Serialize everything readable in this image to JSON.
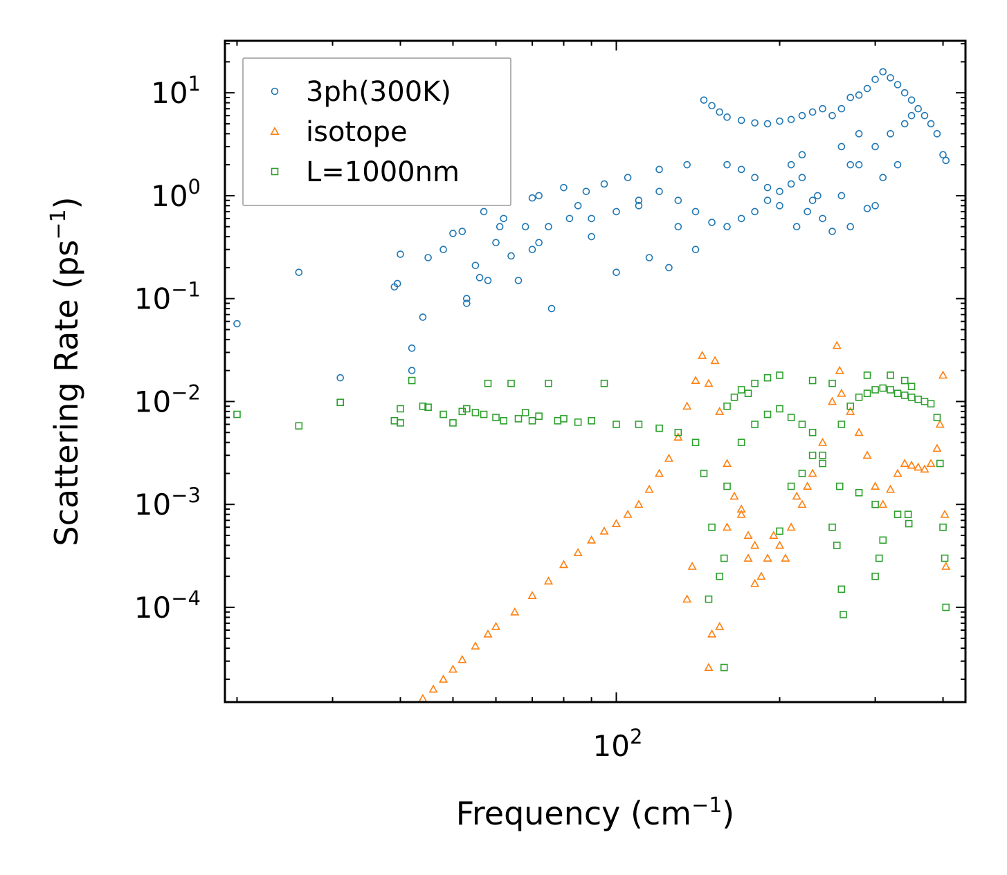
{
  "chart_data": {
    "type": "scatter",
    "title": "",
    "xlabel": "Frequency (cm",
    "xlabel_sup": "−1",
    "xlabel_tail": ")",
    "ylabel": "Scattering Rate (ps",
    "ylabel_sup": "−1",
    "ylabel_tail": ")",
    "xscale": "log",
    "yscale": "log",
    "xlim": [
      19,
      440
    ],
    "ylim": [
      1.2e-05,
      32
    ],
    "x_major_ticks": [
      {
        "value": 100,
        "base": "10",
        "exp": "2"
      }
    ],
    "y_major_ticks": [
      {
        "value": 0.0001,
        "base": "10",
        "exp": "−4"
      },
      {
        "value": 0.001,
        "base": "10",
        "exp": "−3"
      },
      {
        "value": 0.01,
        "base": "10",
        "exp": "−2"
      },
      {
        "value": 0.1,
        "base": "10",
        "exp": "−1"
      },
      {
        "value": 1,
        "base": "10",
        "exp": "0"
      },
      {
        "value": 10,
        "base": "10",
        "exp": "1"
      }
    ],
    "legend_position": "top-left",
    "series": [
      {
        "name": "3ph(300K)",
        "marker": "circle",
        "color": "#1f77b4",
        "points": [
          [
            20,
            0.057
          ],
          [
            26,
            0.18
          ],
          [
            31,
            0.017
          ],
          [
            39,
            0.13
          ],
          [
            40,
            0.27
          ],
          [
            39.5,
            0.14
          ],
          [
            42,
            0.033
          ],
          [
            42,
            0.02
          ],
          [
            44,
            0.066
          ],
          [
            45,
            0.25
          ],
          [
            48,
            0.3
          ],
          [
            50,
            0.43
          ],
          [
            52,
            0.45
          ],
          [
            53,
            0.1
          ],
          [
            53,
            0.09
          ],
          [
            55,
            0.21
          ],
          [
            56,
            0.16
          ],
          [
            57,
            0.7
          ],
          [
            58,
            0.15
          ],
          [
            60,
            0.35
          ],
          [
            61,
            0.5
          ],
          [
            62,
            0.6
          ],
          [
            64,
            0.26
          ],
          [
            66,
            0.15
          ],
          [
            68,
            0.5
          ],
          [
            70,
            0.95
          ],
          [
            70,
            0.3
          ],
          [
            72,
            1.0
          ],
          [
            72,
            0.35
          ],
          [
            75,
            0.5
          ],
          [
            76,
            0.08
          ],
          [
            80,
            1.2
          ],
          [
            82,
            0.6
          ],
          [
            85,
            0.8
          ],
          [
            88,
            1.1
          ],
          [
            90,
            0.4
          ],
          [
            95,
            1.3
          ],
          [
            100,
            0.18
          ],
          [
            105,
            1.5
          ],
          [
            110,
            0.8
          ],
          [
            115,
            0.25
          ],
          [
            120,
            1.8
          ],
          [
            125,
            0.2
          ],
          [
            130,
            0.5
          ],
          [
            135,
            2.0
          ],
          [
            140,
            0.3
          ],
          [
            145,
            8.5
          ],
          [
            150,
            7.5
          ],
          [
            155,
            6.5
          ],
          [
            160,
            5.8
          ],
          [
            170,
            5.4
          ],
          [
            180,
            5.1
          ],
          [
            190,
            5.0
          ],
          [
            200,
            5.3
          ],
          [
            210,
            5.5
          ],
          [
            220,
            6.0
          ],
          [
            230,
            6.5
          ],
          [
            240,
            7.0
          ],
          [
            250,
            6.0
          ],
          [
            260,
            7.0
          ],
          [
            270,
            9.0
          ],
          [
            280,
            9.5
          ],
          [
            290,
            11.0
          ],
          [
            300,
            13.5
          ],
          [
            310,
            16.0
          ],
          [
            320,
            14.0
          ],
          [
            330,
            12.0
          ],
          [
            340,
            10.0
          ],
          [
            350,
            8.5
          ],
          [
            360,
            7.0
          ],
          [
            370,
            6.0
          ],
          [
            380,
            5.0
          ],
          [
            390,
            4.0
          ],
          [
            400,
            2.5
          ],
          [
            405,
            2.2
          ],
          [
            300,
            0.8
          ],
          [
            290,
            0.75
          ],
          [
            270,
            0.5
          ],
          [
            250,
            0.45
          ],
          [
            240,
            0.6
          ],
          [
            230,
            0.9
          ],
          [
            220,
            1.5
          ],
          [
            210,
            1.3
          ],
          [
            200,
            1.1
          ],
          [
            190,
            0.9
          ],
          [
            180,
            0.7
          ],
          [
            170,
            0.6
          ],
          [
            160,
            0.5
          ],
          [
            150,
            0.55
          ],
          [
            140,
            0.7
          ],
          [
            130,
            0.9
          ],
          [
            120,
            1.1
          ],
          [
            110,
            0.9
          ],
          [
            100,
            0.7
          ],
          [
            90,
            0.6
          ],
          [
            260,
            1.0
          ],
          [
            280,
            2.0
          ],
          [
            300,
            3.0
          ],
          [
            320,
            4.0
          ],
          [
            340,
            5.0
          ],
          [
            310,
            1.5
          ],
          [
            330,
            2.0
          ],
          [
            260,
            3.0
          ],
          [
            270,
            2.0
          ],
          [
            280,
            4.0
          ],
          [
            350,
            6.0
          ],
          [
            215,
            0.5
          ],
          [
            225,
            0.7
          ],
          [
            235,
            1.0
          ],
          [
            160,
            2.0
          ],
          [
            170,
            1.8
          ],
          [
            180,
            1.5
          ],
          [
            190,
            1.2
          ],
          [
            200,
            0.8
          ],
          [
            210,
            2.0
          ],
          [
            220,
            2.5
          ]
        ]
      },
      {
        "name": "isotope",
        "marker": "triangle",
        "color": "#ff7f0e",
        "points": [
          [
            44,
            1.3e-05
          ],
          [
            46,
            1.6e-05
          ],
          [
            48,
            2e-05
          ],
          [
            50,
            2.5e-05
          ],
          [
            52,
            3.1e-05
          ],
          [
            55,
            4.2e-05
          ],
          [
            58,
            5.5e-05
          ],
          [
            60,
            6.5e-05
          ],
          [
            65,
            9e-05
          ],
          [
            70,
            0.00013
          ],
          [
            75,
            0.00018
          ],
          [
            80,
            0.00026
          ],
          [
            85,
            0.00034
          ],
          [
            90,
            0.00045
          ],
          [
            95,
            0.00055
          ],
          [
            100,
            0.00065
          ],
          [
            105,
            0.0008
          ],
          [
            110,
            0.001
          ],
          [
            115,
            0.0014
          ],
          [
            120,
            0.002
          ],
          [
            125,
            0.0028
          ],
          [
            130,
            0.0045
          ],
          [
            135,
            0.009
          ],
          [
            140,
            0.016
          ],
          [
            144,
            0.028
          ],
          [
            148,
            0.015
          ],
          [
            152,
            0.025
          ],
          [
            155,
            0.008
          ],
          [
            160,
            0.0025
          ],
          [
            165,
            0.0012
          ],
          [
            170,
            0.0008
          ],
          [
            175,
            0.0005
          ],
          [
            180,
            0.0004
          ],
          [
            190,
            0.0003
          ],
          [
            200,
            0.0004
          ],
          [
            210,
            0.0006
          ],
          [
            220,
            0.001
          ],
          [
            230,
            0.002
          ],
          [
            240,
            0.004
          ],
          [
            250,
            0.01
          ],
          [
            255,
            0.035
          ],
          [
            258,
            0.02
          ],
          [
            260,
            0.012
          ],
          [
            270,
            0.008
          ],
          [
            280,
            0.005
          ],
          [
            290,
            0.003
          ],
          [
            300,
            0.0015
          ],
          [
            310,
            0.001
          ],
          [
            320,
            0.0014
          ],
          [
            330,
            0.002
          ],
          [
            340,
            0.0025
          ],
          [
            350,
            0.0024
          ],
          [
            360,
            0.0023
          ],
          [
            370,
            0.0022
          ],
          [
            380,
            0.0025
          ],
          [
            390,
            0.0035
          ],
          [
            395,
            0.006
          ],
          [
            400,
            0.018
          ],
          [
            403,
            0.0008
          ],
          [
            405,
            0.00025
          ],
          [
            135,
            0.00012
          ],
          [
            138,
            0.00025
          ],
          [
            150,
            5.5e-05
          ],
          [
            155,
            6.5e-05
          ],
          [
            148,
            2.6e-05
          ],
          [
            160,
            0.0006
          ],
          [
            170,
            0.0009
          ],
          [
            175,
            0.0003
          ],
          [
            180,
            0.00017
          ],
          [
            185,
            0.0002
          ],
          [
            195,
            0.0005
          ],
          [
            205,
            0.0003
          ],
          [
            215,
            0.0012
          ],
          [
            225,
            0.0015
          ]
        ]
      },
      {
        "name": "L=1000nm",
        "marker": "square",
        "color": "#2ca02c",
        "points": [
          [
            20,
            0.0075
          ],
          [
            26,
            0.0058
          ],
          [
            31,
            0.0098
          ],
          [
            39,
            0.0065
          ],
          [
            40,
            0.0062
          ],
          [
            40,
            0.0085
          ],
          [
            42,
            0.016
          ],
          [
            44,
            0.009
          ],
          [
            45,
            0.0088
          ],
          [
            48,
            0.0075
          ],
          [
            50,
            0.0062
          ],
          [
            52,
            0.008
          ],
          [
            53,
            0.0085
          ],
          [
            55,
            0.0078
          ],
          [
            57,
            0.0075
          ],
          [
            58,
            0.015
          ],
          [
            60,
            0.007
          ],
          [
            62,
            0.0065
          ],
          [
            64,
            0.015
          ],
          [
            66,
            0.0068
          ],
          [
            68,
            0.0078
          ],
          [
            70,
            0.0065
          ],
          [
            72,
            0.0072
          ],
          [
            75,
            0.015
          ],
          [
            78,
            0.0065
          ],
          [
            80,
            0.0068
          ],
          [
            85,
            0.0063
          ],
          [
            90,
            0.0065
          ],
          [
            95,
            0.015
          ],
          [
            100,
            0.006
          ],
          [
            110,
            0.006
          ],
          [
            120,
            0.0055
          ],
          [
            130,
            0.005
          ],
          [
            140,
            0.004
          ],
          [
            145,
            0.002
          ],
          [
            150,
            0.0006
          ],
          [
            155,
            0.0002
          ],
          [
            158,
            0.0003
          ],
          [
            160,
            0.0015
          ],
          [
            170,
            0.004
          ],
          [
            180,
            0.006
          ],
          [
            190,
            0.0075
          ],
          [
            200,
            0.0085
          ],
          [
            210,
            0.007
          ],
          [
            220,
            0.006
          ],
          [
            230,
            0.005
          ],
          [
            240,
            0.003
          ],
          [
            250,
            0.0006
          ],
          [
            255,
            0.0004
          ],
          [
            258,
            0.0015
          ],
          [
            260,
            0.006
          ],
          [
            270,
            0.009
          ],
          [
            280,
            0.011
          ],
          [
            290,
            0.012
          ],
          [
            300,
            0.013
          ],
          [
            310,
            0.0135
          ],
          [
            320,
            0.013
          ],
          [
            330,
            0.012
          ],
          [
            340,
            0.0115
          ],
          [
            350,
            0.011
          ],
          [
            360,
            0.0105
          ],
          [
            370,
            0.01
          ],
          [
            380,
            0.0095
          ],
          [
            390,
            0.007
          ],
          [
            395,
            0.0025
          ],
          [
            400,
            0.0006
          ],
          [
            403,
            0.0003
          ],
          [
            405,
            0.0001
          ],
          [
            148,
            0.00012
          ],
          [
            158,
            2.6e-05
          ],
          [
            260,
            0.00015
          ],
          [
            262,
            8.5e-05
          ],
          [
            300,
            0.0002
          ],
          [
            305,
            0.0003
          ],
          [
            310,
            0.00045
          ],
          [
            330,
            0.0008
          ],
          [
            345,
            0.0008
          ],
          [
            346,
            0.00065
          ],
          [
            200,
            0.00055
          ],
          [
            210,
            0.0015
          ],
          [
            220,
            0.002
          ],
          [
            170,
            0.013
          ],
          [
            180,
            0.015
          ],
          [
            190,
            0.017
          ],
          [
            200,
            0.018
          ],
          [
            230,
            0.016
          ],
          [
            250,
            0.015
          ],
          [
            290,
            0.018
          ],
          [
            320,
            0.018
          ],
          [
            340,
            0.016
          ],
          [
            350,
            0.014
          ],
          [
            280,
            0.0013
          ],
          [
            300,
            0.001
          ],
          [
            230,
            0.003
          ],
          [
            240,
            0.0025
          ],
          [
            160,
            0.009
          ],
          [
            165,
            0.011
          ],
          [
            175,
            0.012
          ]
        ]
      }
    ]
  }
}
